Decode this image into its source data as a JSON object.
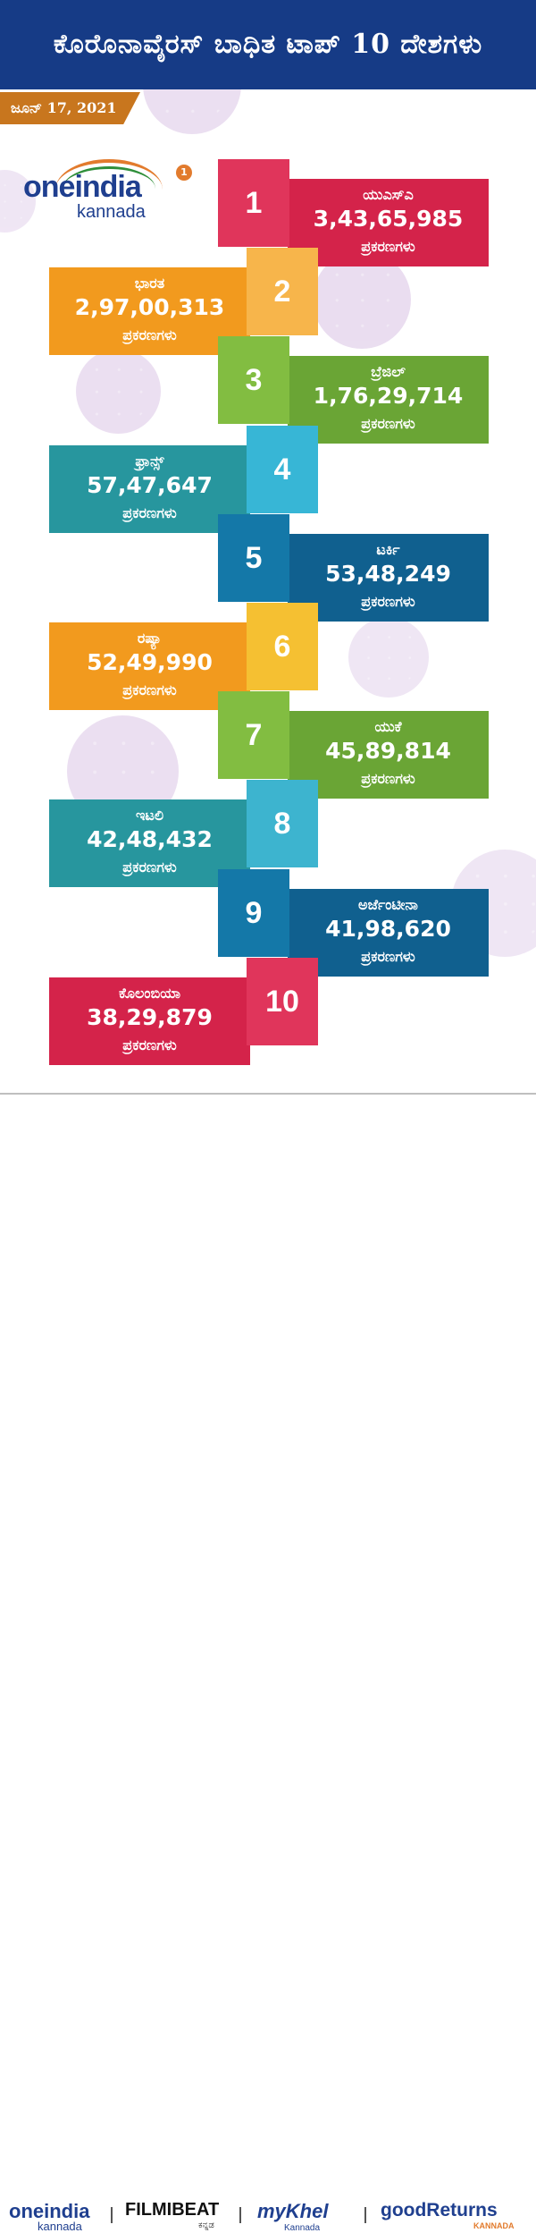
{
  "header": {
    "title": "ಕೊರೊನಾವೈರಸ್ ಬಾಧಿತ ಟಾಪ್ 10 ದೇಶಗಳು"
  },
  "date": "ಜೂನ್ 17, 2021",
  "brand": {
    "name": "oneindia",
    "sub": "kannada",
    "badge": "1"
  },
  "unit_label": "ಪ್ರಕರಣಗಳು",
  "ranks": [
    {
      "rank": "1",
      "country": "ಯುಎಸ್ಎ",
      "cases": "3,43,65,985",
      "color": "#d4234a",
      "num_color": "#e0355b"
    },
    {
      "rank": "2",
      "country": "ಭಾರತ",
      "cases": "2,97,00,313",
      "color": "#f29a1e",
      "num_color": "#f7b54b"
    },
    {
      "rank": "3",
      "country": "ಬ್ರೆಜಿಲ್",
      "cases": "1,76,29,714",
      "color": "#6aa535",
      "num_color": "#82bd41"
    },
    {
      "rank": "4",
      "country": "ಫ್ರಾನ್ಸ್",
      "cases": "57,47,647",
      "color": "#27969e",
      "num_color": "#37b6d6"
    },
    {
      "rank": "5",
      "country": "ಟರ್ಕಿ",
      "cases": "53,48,249",
      "color": "#10608f",
      "num_color": "#1478a8"
    },
    {
      "rank": "6",
      "country": "ರಷ್ಯಾ",
      "cases": "52,49,990",
      "color": "#f29a1e",
      "num_color": "#f5c032"
    },
    {
      "rank": "7",
      "country": "ಯುಕೆ",
      "cases": "45,89,814",
      "color": "#6aa535",
      "num_color": "#82bd41"
    },
    {
      "rank": "8",
      "country": "ಇಟಲಿ",
      "cases": "42,48,432",
      "color": "#27969e",
      "num_color": "#3db4cf"
    },
    {
      "rank": "9",
      "country": "ಅರ್ಜೆಂಟೀನಾ",
      "cases": "41,98,620",
      "color": "#10608f",
      "num_color": "#1478a8"
    },
    {
      "rank": "10",
      "country": "ಕೊಲಂಬಿಯಾ",
      "cases": "38,29,879",
      "color": "#d4234a",
      "num_color": "#e0355b"
    }
  ],
  "footer": {
    "logos": [
      {
        "name": "oneindia",
        "sub": "kannada",
        "color": "#1f3f8f"
      },
      {
        "name": "FILMIBEAT",
        "sub": "ಕನ್ನಡ",
        "color": "#111111"
      },
      {
        "name": "myKhel",
        "sub": "Kannada",
        "color": "#1f3f8f"
      },
      {
        "name": "goodReturns",
        "sub": "KANNADA",
        "color": "#1f3f8f"
      }
    ]
  }
}
